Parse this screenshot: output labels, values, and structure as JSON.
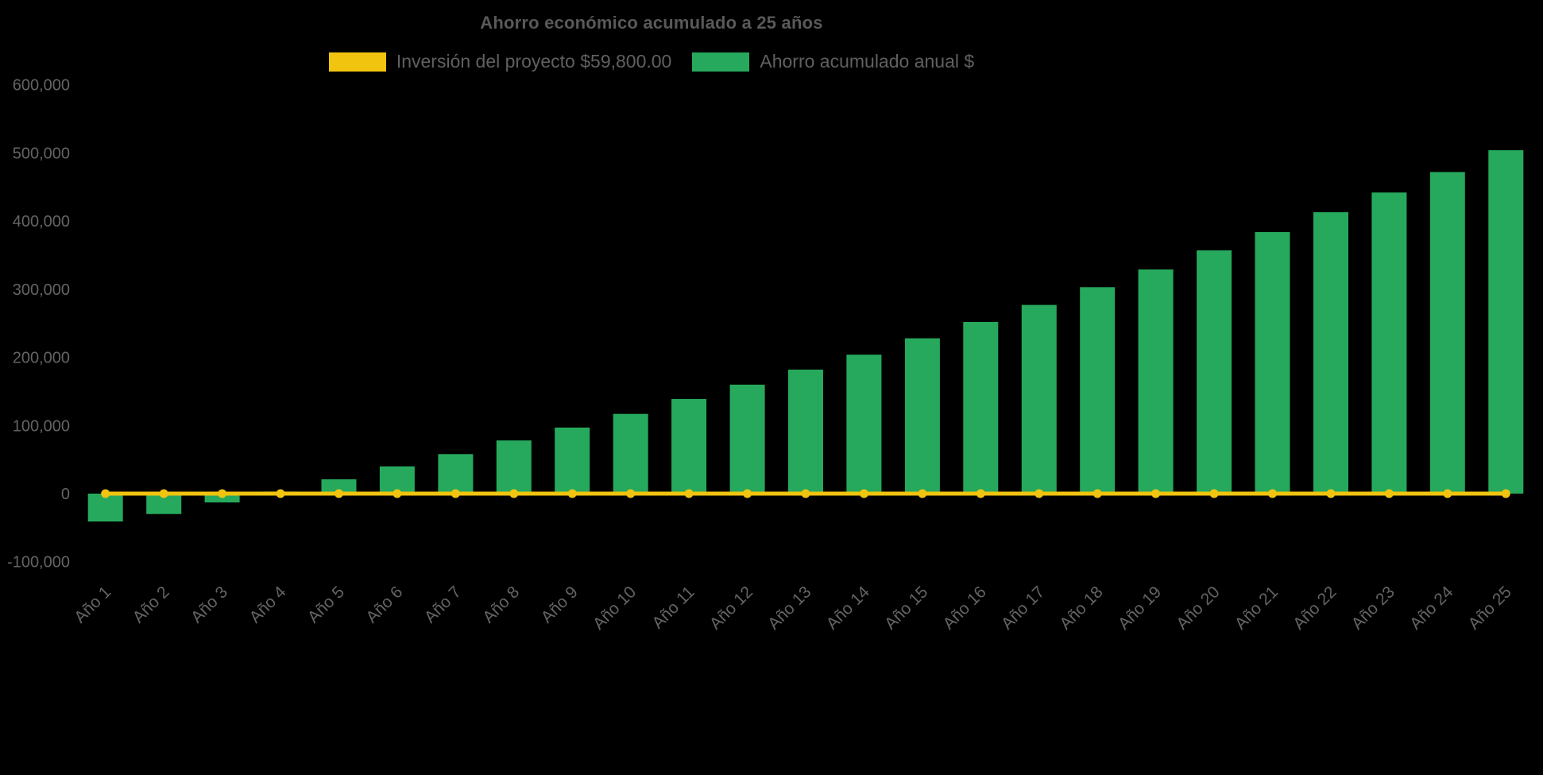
{
  "text_color": "#646467",
  "title_color": "#59595c",
  "chart_data": {
    "type": "bar",
    "title": "Ahorro económico acumulado a 25 años",
    "xlabel": "",
    "ylabel": "",
    "grid": false,
    "legend_position": "top",
    "background": "#000000",
    "ylim": [
      -100000,
      600000
    ],
    "yticks": [
      600000,
      500000,
      400000,
      300000,
      200000,
      100000,
      0,
      -100000
    ],
    "categories": [
      "Año 1",
      "Año 2",
      "Año 3",
      "Año 4",
      "Año 5",
      "Año 6",
      "Año 7",
      "Año 8",
      "Año 9",
      "Año 10",
      "Año 11",
      "Año 12",
      "Año 13",
      "Año 14",
      "Año 15",
      "Año 16",
      "Año 17",
      "Año 18",
      "Año 19",
      "Año 20",
      "Año 21",
      "Año 22",
      "Año 23",
      "Año 24",
      "Año 25"
    ],
    "series": [
      {
        "name": "Inversión del proyecto $59,800.00",
        "type": "line",
        "color": "#F1C40F",
        "plotted_value": 0,
        "stated_value": "$59,800.00"
      },
      {
        "name": "Ahorro acumulado anual $",
        "type": "bar",
        "color": "#26A95C",
        "values": [
          -41000,
          -30000,
          -13000,
          3000,
          21000,
          40000,
          58000,
          78000,
          97000,
          117000,
          139000,
          160000,
          182000,
          204000,
          228000,
          252000,
          277000,
          303000,
          329000,
          357000,
          384000,
          413000,
          442000,
          472000,
          504000
        ]
      }
    ]
  }
}
